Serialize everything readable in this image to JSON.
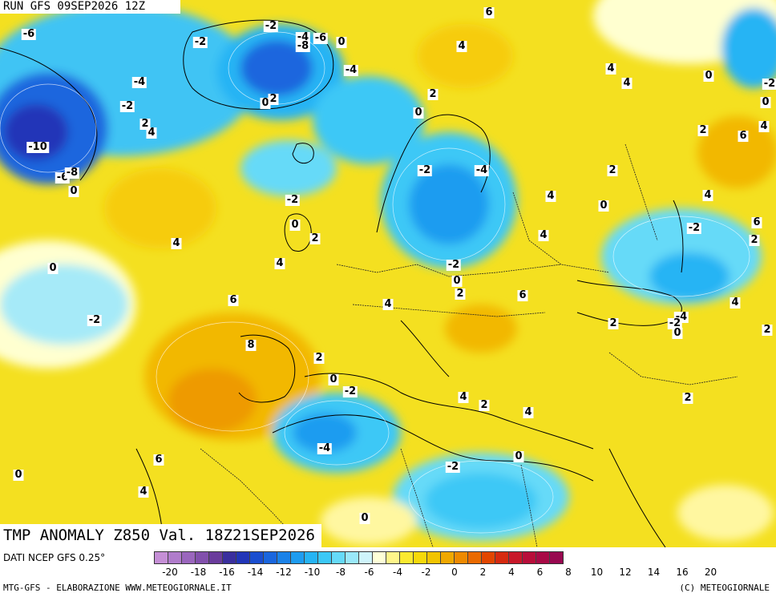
{
  "run_title": "RUN GFS 09SEP2026 12Z",
  "field_title": "TMP ANOMALY Z850 Val. 18Z21SEP2026",
  "data_source": "DATI NCEP GFS 0.25°",
  "credit_left": "MTG-GFS - ELABORAZIONE WWW.METEOGIORNALE.IT",
  "credit_right": "(C) METEOGIORNALE",
  "colorbar": {
    "colors": [
      "#c58fd6",
      "#b07ccb",
      "#9a66bd",
      "#8250ac",
      "#6a3c9c",
      "#3a2f9e",
      "#2236b8",
      "#1a4ed0",
      "#1a66de",
      "#1b82e8",
      "#1e9cf0",
      "#26b4f4",
      "#3cc8f6",
      "#66daf8",
      "#9ae8fa",
      "#cff4fb",
      "#ffffd8",
      "#fff58a",
      "#fbe930",
      "#f6d90a",
      "#f2c400",
      "#f0a800",
      "#ee8a00",
      "#ea6a00",
      "#e24600",
      "#d62a10",
      "#c8182a",
      "#b80e3a",
      "#a80a46",
      "#980850"
    ],
    "tick_labels": [
      "-20",
      "-18",
      "-16",
      "-14",
      "-12",
      "-10",
      "-8",
      "-6",
      "-4",
      "-2",
      "0",
      "2",
      "4",
      "6",
      "8",
      "10",
      "12",
      "14",
      "16",
      "20"
    ]
  },
  "map": {
    "anomaly_labels": [
      {
        "text": "-4",
        "lon": -16,
        "lat": 0
      },
      {
        "text": "6",
        "lon": 610,
        "lat": 16
      },
      {
        "text": "-6",
        "lon": 36,
        "lat": 43
      },
      {
        "text": "-2",
        "lon": 338,
        "lat": 33
      },
      {
        "text": "-4",
        "lon": 378,
        "lat": 47
      },
      {
        "text": "-6",
        "lon": 400,
        "lat": 48
      },
      {
        "text": "0",
        "lon": 426,
        "lat": 53
      },
      {
        "text": "-8",
        "lon": 378,
        "lat": 58
      },
      {
        "text": "-2",
        "lon": 250,
        "lat": 53
      },
      {
        "text": "4",
        "lon": 576,
        "lat": 58
      },
      {
        "text": "-4",
        "lon": 438,
        "lat": 88
      },
      {
        "text": "-4",
        "lon": 174,
        "lat": 103
      },
      {
        "text": "4",
        "lon": 762,
        "lat": 86
      },
      {
        "text": "4",
        "lon": 782,
        "lat": 104
      },
      {
        "text": "0",
        "lon": 884,
        "lat": 95
      },
      {
        "text": "-2",
        "lon": 962,
        "lat": 105
      },
      {
        "text": "0",
        "lon": 331,
        "lat": 129
      },
      {
        "text": "2",
        "lon": 341,
        "lat": 124
      },
      {
        "text": "2",
        "lon": 540,
        "lat": 118
      },
      {
        "text": "-2",
        "lon": 159,
        "lat": 133
      },
      {
        "text": "0",
        "lon": 955,
        "lat": 128
      },
      {
        "text": "0",
        "lon": 522,
        "lat": 141
      },
      {
        "text": "2",
        "lon": 181,
        "lat": 155
      },
      {
        "text": "4",
        "lon": 189,
        "lat": 166
      },
      {
        "text": "4",
        "lon": 953,
        "lat": 158
      },
      {
        "text": "2",
        "lon": 877,
        "lat": 163
      },
      {
        "text": "6",
        "lon": 927,
        "lat": 170
      },
      {
        "text": "-10",
        "lon": 47,
        "lat": 184
      },
      {
        "text": "-2",
        "lon": 530,
        "lat": 213
      },
      {
        "text": "-4",
        "lon": 601,
        "lat": 213
      },
      {
        "text": "2",
        "lon": 764,
        "lat": 213
      },
      {
        "text": "-6",
        "lon": 78,
        "lat": 222
      },
      {
        "text": "-8",
        "lon": 90,
        "lat": 216
      },
      {
        "text": "0",
        "lon": 92,
        "lat": 239
      },
      {
        "text": "4",
        "lon": 687,
        "lat": 245
      },
      {
        "text": "4",
        "lon": 883,
        "lat": 244
      },
      {
        "text": "-2",
        "lon": 365,
        "lat": 250
      },
      {
        "text": "0",
        "lon": 753,
        "lat": 257
      },
      {
        "text": "0",
        "lon": 368,
        "lat": 281
      },
      {
        "text": "6",
        "lon": 944,
        "lat": 278
      },
      {
        "text": "-2",
        "lon": 866,
        "lat": 285
      },
      {
        "text": "2",
        "lon": 393,
        "lat": 298
      },
      {
        "text": "4",
        "lon": 678,
        "lat": 294
      },
      {
        "text": "2",
        "lon": 941,
        "lat": 300
      },
      {
        "text": "4",
        "lon": 220,
        "lat": 304
      },
      {
        "text": "4",
        "lon": 349,
        "lat": 329
      },
      {
        "text": "-2",
        "lon": 566,
        "lat": 331
      },
      {
        "text": "0",
        "lon": 66,
        "lat": 335
      },
      {
        "text": "0",
        "lon": 570,
        "lat": 351
      },
      {
        "text": "2",
        "lon": 574,
        "lat": 367
      },
      {
        "text": "6",
        "lon": 652,
        "lat": 369
      },
      {
        "text": "6",
        "lon": 291,
        "lat": 375
      },
      {
        "text": "4",
        "lon": 484,
        "lat": 380
      },
      {
        "text": "4",
        "lon": 917,
        "lat": 378
      },
      {
        "text": "-2",
        "lon": 118,
        "lat": 400
      },
      {
        "text": "2",
        "lon": 765,
        "lat": 404
      },
      {
        "text": "-4",
        "lon": 850,
        "lat": 396
      },
      {
        "text": "-2",
        "lon": 842,
        "lat": 404
      },
      {
        "text": "2",
        "lon": 957,
        "lat": 412
      },
      {
        "text": "0",
        "lon": 845,
        "lat": 416
      },
      {
        "text": "8",
        "lon": 313,
        "lat": 431
      },
      {
        "text": "2",
        "lon": 398,
        "lat": 447
      },
      {
        "text": "0",
        "lon": 416,
        "lat": 474
      },
      {
        "text": "-2",
        "lon": 437,
        "lat": 489
      },
      {
        "text": "4",
        "lon": 578,
        "lat": 496
      },
      {
        "text": "2",
        "lon": 858,
        "lat": 497
      },
      {
        "text": "2",
        "lon": 604,
        "lat": 506
      },
      {
        "text": "4",
        "lon": 659,
        "lat": 515
      },
      {
        "text": "-4",
        "lon": 405,
        "lat": 560
      },
      {
        "text": "0",
        "lon": 647,
        "lat": 570
      },
      {
        "text": "6",
        "lon": 198,
        "lat": 574
      },
      {
        "text": "-2",
        "lon": 565,
        "lat": 583
      },
      {
        "text": "0",
        "lon": 23,
        "lat": 593
      },
      {
        "text": "4",
        "lon": 179,
        "lat": 614
      },
      {
        "text": "0",
        "lon": 455,
        "lat": 647
      }
    ]
  }
}
